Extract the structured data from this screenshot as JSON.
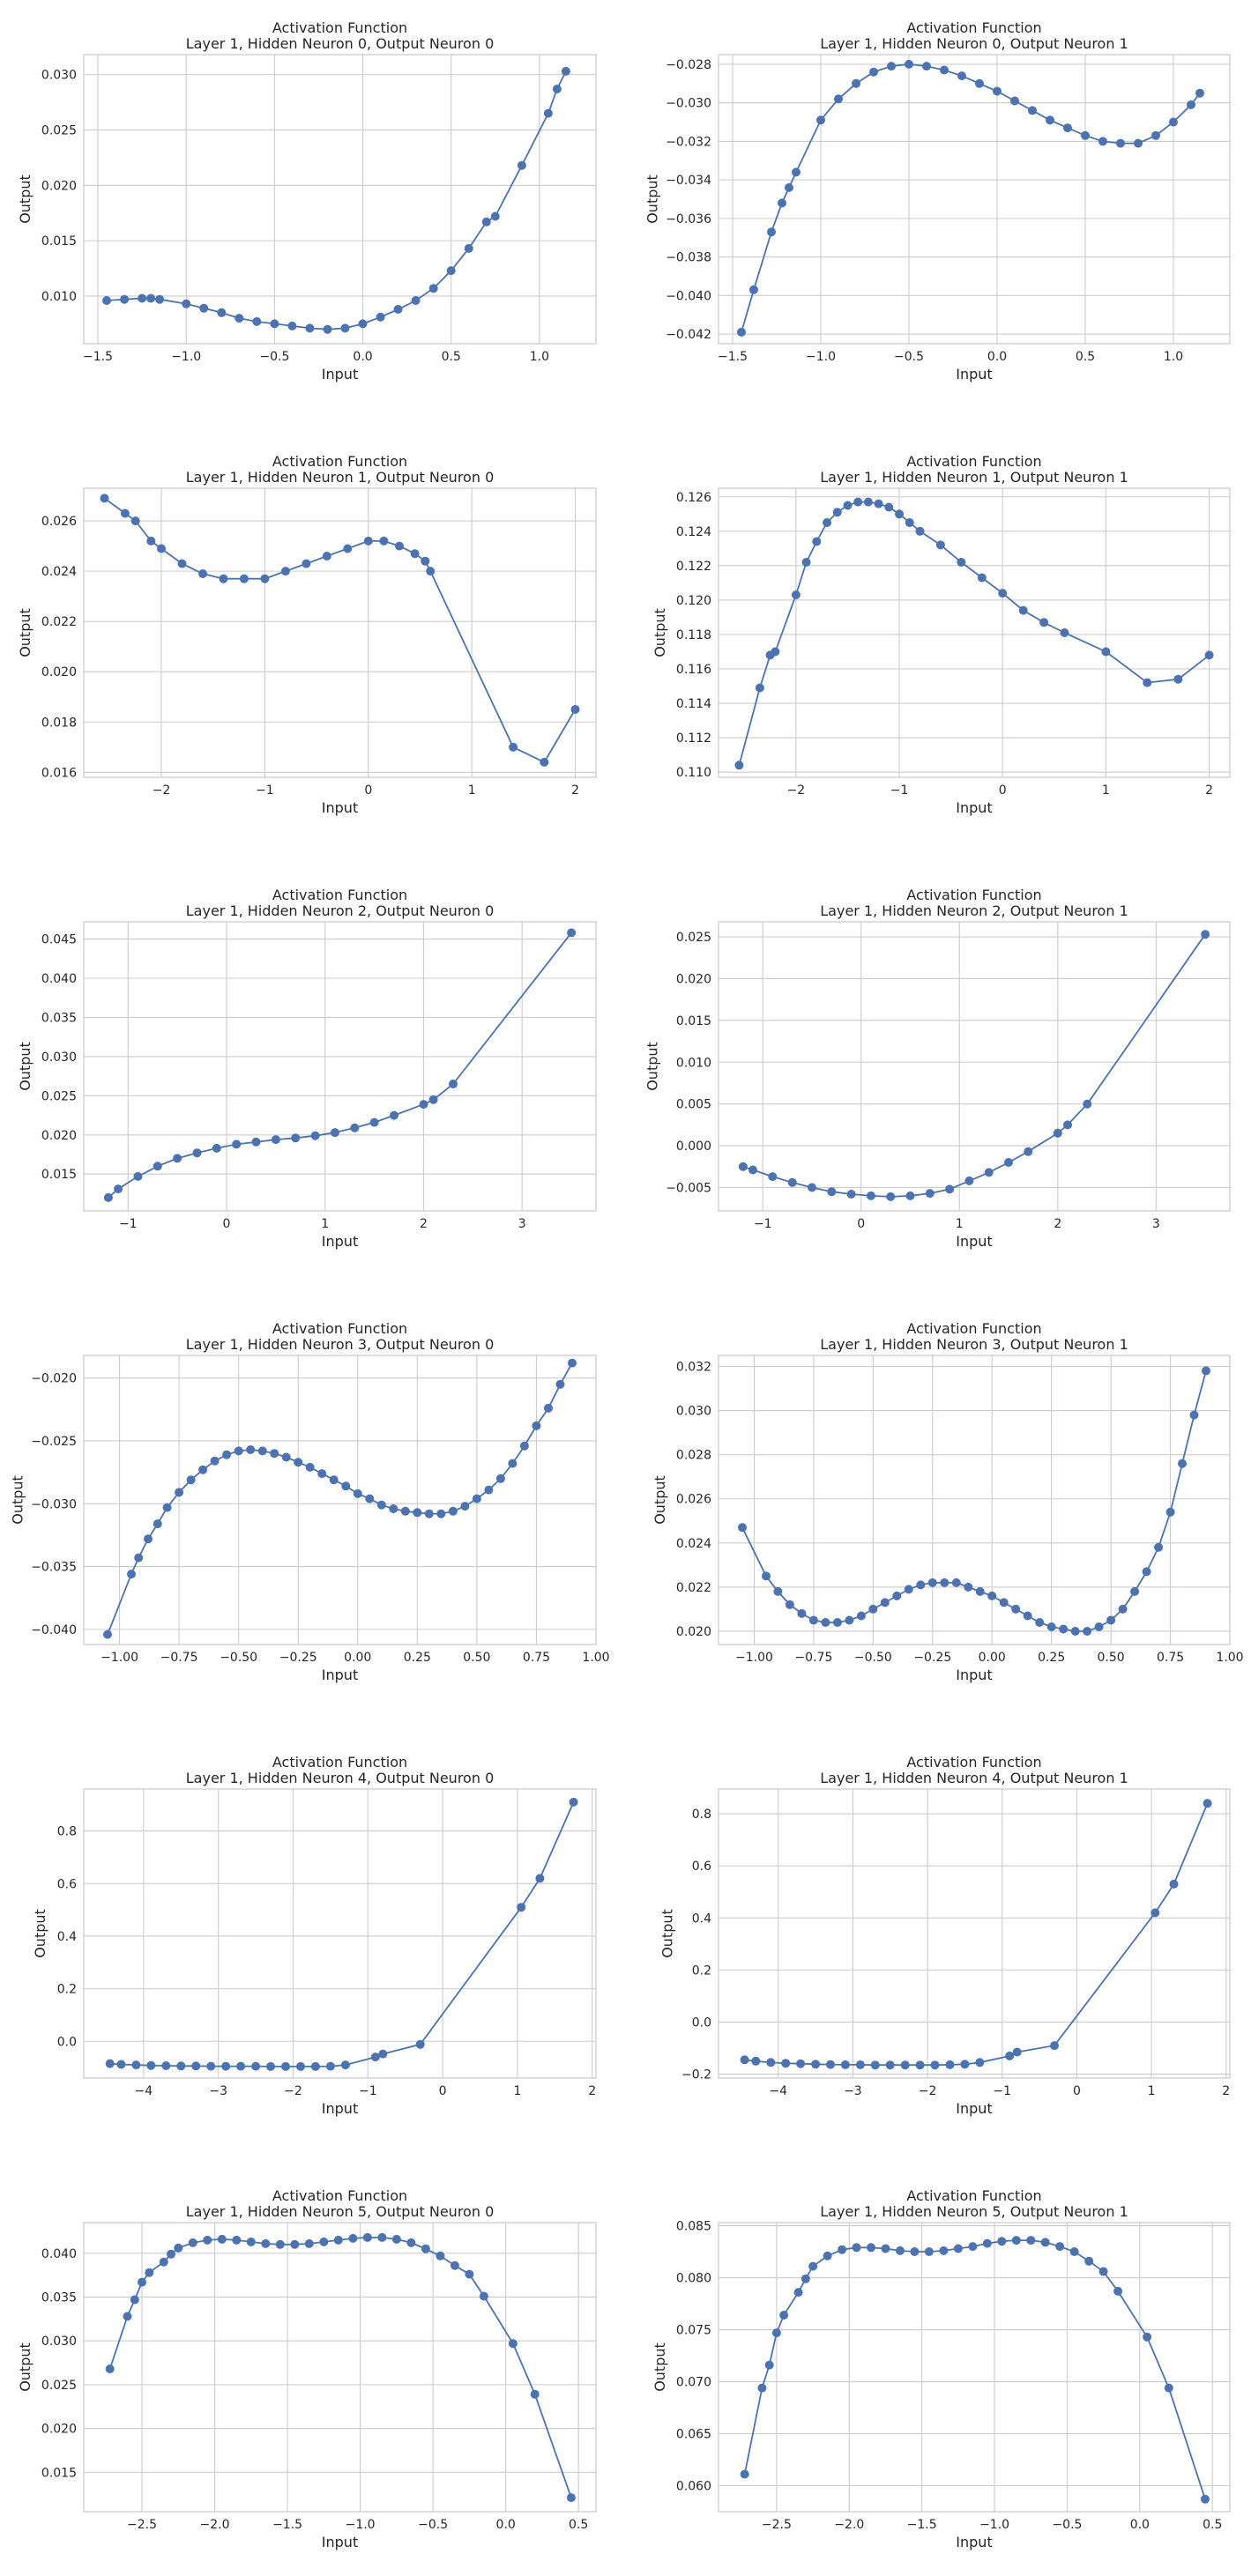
{
  "chart_data": [
    {
      "type": "line",
      "title": [
        "Activation Function",
        "Layer 1, Hidden Neuron 0, Output Neuron 0"
      ],
      "xlabel": "Input",
      "ylabel": "Output",
      "xlim": [
        -1.58,
        1.32
      ],
      "ylim": [
        0.0057,
        0.0318
      ],
      "xticks": [
        "-1.5",
        "-1.0",
        "-0.5",
        "0.0",
        "0.5",
        "1.0"
      ],
      "yticks": [
        "0.010",
        "0.015",
        "0.020",
        "0.025",
        "0.030"
      ],
      "grid": true,
      "x": [
        -1.45,
        -1.35,
        -1.25,
        -1.2,
        -1.15,
        -1.0,
        -0.9,
        -0.8,
        -0.7,
        -0.6,
        -0.5,
        -0.4,
        -0.3,
        -0.2,
        -0.1,
        0.0,
        0.1,
        0.2,
        0.3,
        0.4,
        0.5,
        0.6,
        0.7,
        0.75,
        0.9,
        1.05,
        1.1,
        1.15
      ],
      "y": [
        0.0096,
        0.0097,
        0.0098,
        0.0098,
        0.0097,
        0.0093,
        0.0089,
        0.0085,
        0.008,
        0.0077,
        0.0075,
        0.0073,
        0.0071,
        0.007,
        0.0071,
        0.0075,
        0.0081,
        0.0088,
        0.0096,
        0.0107,
        0.0123,
        0.0143,
        0.0167,
        0.0172,
        0.0218,
        0.0265,
        0.0287,
        0.0303
      ]
    },
    {
      "type": "line",
      "title": [
        "Activation Function",
        "Layer 1, Hidden Neuron 0, Output Neuron 1"
      ],
      "xlabel": "Input",
      "ylabel": "Output",
      "xlim": [
        -1.58,
        1.32
      ],
      "ylim": [
        -0.0425,
        -0.0275
      ],
      "xticks": [
        "-1.5",
        "-1.0",
        "-0.5",
        "0.0",
        "0.5",
        "1.0"
      ],
      "yticks": [
        "-0.042",
        "-0.040",
        "-0.038",
        "-0.036",
        "-0.034",
        "-0.032",
        "-0.030",
        "-0.028"
      ],
      "grid": true,
      "x": [
        -1.45,
        -1.38,
        -1.28,
        -1.22,
        -1.18,
        -1.14,
        -1.0,
        -0.9,
        -0.8,
        -0.7,
        -0.6,
        -0.5,
        -0.4,
        -0.3,
        -0.2,
        -0.1,
        0.0,
        0.1,
        0.2,
        0.3,
        0.4,
        0.5,
        0.6,
        0.7,
        0.8,
        0.9,
        1.0,
        1.1,
        1.15
      ],
      "y": [
        -0.0419,
        -0.0397,
        -0.0367,
        -0.0352,
        -0.0344,
        -0.0336,
        -0.0309,
        -0.0298,
        -0.029,
        -0.0284,
        -0.0281,
        -0.028,
        -0.0281,
        -0.0283,
        -0.0286,
        -0.029,
        -0.0294,
        -0.0299,
        -0.0304,
        -0.0309,
        -0.0313,
        -0.0317,
        -0.032,
        -0.0321,
        -0.0321,
        -0.0317,
        -0.031,
        -0.0301,
        -0.0295
      ]
    },
    {
      "type": "line",
      "title": [
        "Activation Function",
        "Layer 1, Hidden Neuron 1, Output Neuron 0"
      ],
      "xlabel": "Input",
      "ylabel": "Output",
      "xlim": [
        -2.75,
        2.2
      ],
      "ylim": [
        0.0158,
        0.0273
      ],
      "xticks": [
        "-2",
        "-1",
        "0",
        "1",
        "2"
      ],
      "yticks": [
        "0.016",
        "0.018",
        "0.020",
        "0.022",
        "0.024",
        "0.026"
      ],
      "grid": true,
      "x": [
        -2.55,
        -2.35,
        -2.25,
        -2.1,
        -2.0,
        -1.8,
        -1.6,
        -1.4,
        -1.2,
        -1.0,
        -0.8,
        -0.6,
        -0.4,
        -0.2,
        0.0,
        0.15,
        0.3,
        0.45,
        0.55,
        0.6,
        1.4,
        1.7,
        2.0
      ],
      "y": [
        0.0269,
        0.0263,
        0.026,
        0.0252,
        0.0249,
        0.0243,
        0.0239,
        0.0237,
        0.0237,
        0.0237,
        0.024,
        0.0243,
        0.0246,
        0.0249,
        0.0252,
        0.0252,
        0.025,
        0.0247,
        0.0244,
        0.024,
        0.017,
        0.0164,
        0.0185
      ]
    },
    {
      "type": "line",
      "title": [
        "Activation Function",
        "Layer 1, Hidden Neuron 1, Output Neuron 1"
      ],
      "xlabel": "Input",
      "ylabel": "Output",
      "xlim": [
        -2.75,
        2.2
      ],
      "ylim": [
        0.1097,
        0.1265
      ],
      "xticks": [
        "-2",
        "-1",
        "0",
        "1",
        "2"
      ],
      "yticks": [
        "0.110",
        "0.112",
        "0.114",
        "0.116",
        "0.118",
        "0.120",
        "0.122",
        "0.124",
        "0.126"
      ],
      "grid": true,
      "x": [
        -2.55,
        -2.35,
        -2.25,
        -2.2,
        -2.0,
        -1.9,
        -1.8,
        -1.7,
        -1.6,
        -1.5,
        -1.4,
        -1.3,
        -1.2,
        -1.1,
        -1.0,
        -0.9,
        -0.8,
        -0.6,
        -0.4,
        -0.2,
        0.0,
        0.2,
        0.4,
        0.6,
        1.0,
        1.4,
        1.7,
        2.0
      ],
      "y": [
        0.1104,
        0.1149,
        0.1168,
        0.117,
        0.1203,
        0.1222,
        0.1234,
        0.1245,
        0.1251,
        0.1255,
        0.1257,
        0.1257,
        0.1256,
        0.1254,
        0.125,
        0.1245,
        0.124,
        0.1232,
        0.1222,
        0.1213,
        0.1204,
        0.1194,
        0.1187,
        0.1181,
        0.117,
        0.1152,
        0.1154,
        0.1168
      ]
    },
    {
      "type": "line",
      "title": [
        "Activation Function",
        "Layer 1, Hidden Neuron 2, Output Neuron 0"
      ],
      "xlabel": "Input",
      "ylabel": "Output",
      "xlim": [
        -1.45,
        3.75
      ],
      "ylim": [
        0.0103,
        0.0472
      ],
      "xticks": [
        "-1",
        "0",
        "1",
        "2",
        "3"
      ],
      "yticks": [
        "0.015",
        "0.020",
        "0.025",
        "0.030",
        "0.035",
        "0.040",
        "0.045"
      ],
      "grid": true,
      "x": [
        -1.2,
        -1.1,
        -0.9,
        -0.7,
        -0.5,
        -0.3,
        -0.1,
        0.1,
        0.3,
        0.5,
        0.7,
        0.9,
        1.1,
        1.3,
        1.5,
        1.7,
        2.0,
        2.1,
        2.3,
        3.5
      ],
      "y": [
        0.012,
        0.0131,
        0.0147,
        0.016,
        0.017,
        0.0177,
        0.0183,
        0.0188,
        0.0191,
        0.0194,
        0.0196,
        0.0199,
        0.0203,
        0.0209,
        0.0216,
        0.0225,
        0.0239,
        0.0245,
        0.0265,
        0.0458
      ]
    },
    {
      "type": "line",
      "title": [
        "Activation Function",
        "Layer 1, Hidden Neuron 2, Output Neuron 1"
      ],
      "xlabel": "Input",
      "ylabel": "Output",
      "xlim": [
        -1.45,
        3.75
      ],
      "ylim": [
        -0.0078,
        0.0268
      ],
      "xticks": [
        "-1",
        "0",
        "1",
        "2",
        "3"
      ],
      "yticks": [
        "-0.005",
        "0.000",
        "0.005",
        "0.010",
        "0.015",
        "0.020",
        "0.025"
      ],
      "grid": true,
      "x": [
        -1.2,
        -1.1,
        -0.9,
        -0.7,
        -0.5,
        -0.3,
        -0.1,
        0.1,
        0.3,
        0.5,
        0.7,
        0.9,
        1.1,
        1.3,
        1.5,
        1.7,
        2.0,
        2.1,
        2.3,
        3.5
      ],
      "y": [
        -0.0025,
        -0.0029,
        -0.0037,
        -0.0044,
        -0.005,
        -0.0055,
        -0.0058,
        -0.006,
        -0.0061,
        -0.006,
        -0.0057,
        -0.0052,
        -0.0042,
        -0.0032,
        -0.002,
        -0.0007,
        0.0015,
        0.0025,
        0.005,
        0.0253
      ]
    },
    {
      "type": "line",
      "title": [
        "Activation Function",
        "Layer 1, Hidden Neuron 3, Output Neuron 0"
      ],
      "xlabel": "Input",
      "ylabel": "Output",
      "xlim": [
        -1.15,
        1.0
      ],
      "ylim": [
        -0.0412,
        -0.0182
      ],
      "xticks": [
        "-1.00",
        "-0.75",
        "-0.50",
        "-0.25",
        "0.00",
        "0.25",
        "0.50",
        "0.75",
        "1.00"
      ],
      "yticks": [
        "-0.040",
        "-0.035",
        "-0.030",
        "-0.025",
        "-0.020"
      ],
      "grid": true,
      "x": [
        -1.05,
        -0.95,
        -0.92,
        -0.88,
        -0.84,
        -0.8,
        -0.75,
        -0.7,
        -0.65,
        -0.6,
        -0.55,
        -0.5,
        -0.45,
        -0.4,
        -0.35,
        -0.3,
        -0.25,
        -0.2,
        -0.15,
        -0.1,
        -0.05,
        0.0,
        0.05,
        0.1,
        0.15,
        0.2,
        0.25,
        0.3,
        0.35,
        0.4,
        0.45,
        0.5,
        0.55,
        0.6,
        0.65,
        0.7,
        0.75,
        0.8,
        0.85,
        0.9
      ],
      "y": [
        -0.0404,
        -0.0356,
        -0.0343,
        -0.0328,
        -0.0316,
        -0.0303,
        -0.0291,
        -0.0281,
        -0.0273,
        -0.0266,
        -0.0261,
        -0.0258,
        -0.0257,
        -0.0258,
        -0.026,
        -0.0263,
        -0.0267,
        -0.0271,
        -0.0276,
        -0.0281,
        -0.0286,
        -0.0292,
        -0.0296,
        -0.0301,
        -0.0304,
        -0.0306,
        -0.0307,
        -0.0308,
        -0.0308,
        -0.0306,
        -0.0302,
        -0.0296,
        -0.0289,
        -0.028,
        -0.0268,
        -0.0254,
        -0.0238,
        -0.0224,
        -0.0205,
        -0.0188
      ]
    },
    {
      "type": "line",
      "title": [
        "Activation Function",
        "Layer 1, Hidden Neuron 3, Output Neuron 1"
      ],
      "xlabel": "Input",
      "ylabel": "Output",
      "xlim": [
        -1.15,
        1.0
      ],
      "ylim": [
        0.0194,
        0.0325
      ],
      "xticks": [
        "-1.00",
        "-0.75",
        "-0.50",
        "-0.25",
        "0.00",
        "0.25",
        "0.50",
        "0.75",
        "1.00"
      ],
      "yticks": [
        "0.020",
        "0.022",
        "0.024",
        "0.026",
        "0.028",
        "0.030",
        "0.032"
      ],
      "grid": true,
      "x": [
        -1.05,
        -0.95,
        -0.9,
        -0.85,
        -0.8,
        -0.75,
        -0.7,
        -0.65,
        -0.6,
        -0.55,
        -0.5,
        -0.45,
        -0.4,
        -0.35,
        -0.3,
        -0.25,
        -0.2,
        -0.15,
        -0.1,
        -0.05,
        0.0,
        0.05,
        0.1,
        0.15,
        0.2,
        0.25,
        0.3,
        0.35,
        0.4,
        0.45,
        0.5,
        0.55,
        0.6,
        0.65,
        0.7,
        0.75,
        0.8,
        0.85,
        0.9
      ],
      "y": [
        0.0247,
        0.0225,
        0.0218,
        0.0212,
        0.0208,
        0.0205,
        0.0204,
        0.0204,
        0.0205,
        0.0207,
        0.021,
        0.0213,
        0.0216,
        0.0219,
        0.0221,
        0.0222,
        0.0222,
        0.0222,
        0.022,
        0.0218,
        0.0216,
        0.0213,
        0.021,
        0.0207,
        0.0204,
        0.0202,
        0.0201,
        0.02,
        0.02,
        0.0202,
        0.0205,
        0.021,
        0.0218,
        0.0227,
        0.0238,
        0.0254,
        0.0276,
        0.0298,
        0.0318
      ]
    },
    {
      "type": "line",
      "title": [
        "Activation Function",
        "Layer 1, Hidden Neuron 4, Output Neuron 0"
      ],
      "xlabel": "Input",
      "ylabel": "Output",
      "xlim": [
        -4.8,
        2.05
      ],
      "ylim": [
        -0.14,
        0.96
      ],
      "xticks": [
        "-4",
        "-3",
        "-2",
        "-1",
        "0",
        "1",
        "2"
      ],
      "yticks": [
        "0.0",
        "0.2",
        "0.4",
        "0.6",
        "0.8"
      ],
      "grid": true,
      "x": [
        -4.45,
        -4.3,
        -4.1,
        -3.9,
        -3.7,
        -3.5,
        -3.3,
        -3.1,
        -2.9,
        -2.7,
        -2.5,
        -2.3,
        -2.1,
        -1.9,
        -1.7,
        -1.5,
        -1.3,
        -0.9,
        -0.8,
        -0.3,
        1.05,
        1.3,
        1.75
      ],
      "y": [
        -0.085,
        -0.088,
        -0.09,
        -0.092,
        -0.093,
        -0.094,
        -0.094,
        -0.095,
        -0.095,
        -0.095,
        -0.095,
        -0.096,
        -0.096,
        -0.096,
        -0.096,
        -0.095,
        -0.09,
        -0.06,
        -0.048,
        -0.012,
        0.51,
        0.62,
        0.91
      ]
    },
    {
      "type": "line",
      "title": [
        "Activation Function",
        "Layer 1, Hidden Neuron 4, Output Neuron 1"
      ],
      "xlabel": "Input",
      "ylabel": "Output",
      "xlim": [
        -4.8,
        2.05
      ],
      "ylim": [
        -0.215,
        0.895
      ],
      "xticks": [
        "-4",
        "-3",
        "-2",
        "-1",
        "0",
        "1",
        "2"
      ],
      "yticks": [
        "-0.2",
        "0.0",
        "0.2",
        "0.4",
        "0.6",
        "0.8"
      ],
      "grid": true,
      "x": [
        -4.45,
        -4.3,
        -4.1,
        -3.9,
        -3.7,
        -3.5,
        -3.3,
        -3.1,
        -2.9,
        -2.7,
        -2.5,
        -2.3,
        -2.1,
        -1.9,
        -1.7,
        -1.5,
        -1.3,
        -0.9,
        -0.8,
        -0.3,
        1.05,
        1.3,
        1.75
      ],
      "y": [
        -0.145,
        -0.15,
        -0.155,
        -0.158,
        -0.16,
        -0.162,
        -0.163,
        -0.164,
        -0.164,
        -0.165,
        -0.165,
        -0.165,
        -0.165,
        -0.165,
        -0.164,
        -0.162,
        -0.155,
        -0.13,
        -0.115,
        -0.09,
        0.42,
        0.53,
        0.84
      ]
    },
    {
      "type": "line",
      "title": [
        "Activation Function",
        "Layer 1, Hidden Neuron 5, Output Neuron 0"
      ],
      "xlabel": "Input",
      "ylabel": "Output",
      "xlim": [
        -2.9,
        0.62
      ],
      "ylim": [
        0.0105,
        0.0435
      ],
      "xticks": [
        "-2.5",
        "-2.0",
        "-1.5",
        "-1.0",
        "-0.5",
        "0.0",
        "0.5"
      ],
      "yticks": [
        "0.015",
        "0.020",
        "0.025",
        "0.030",
        "0.035",
        "0.040"
      ],
      "grid": true,
      "x": [
        -2.72,
        -2.6,
        -2.55,
        -2.5,
        -2.45,
        -2.35,
        -2.3,
        -2.25,
        -2.15,
        -2.05,
        -1.95,
        -1.85,
        -1.75,
        -1.65,
        -1.55,
        -1.45,
        -1.35,
        -1.25,
        -1.15,
        -1.05,
        -0.95,
        -0.85,
        -0.75,
        -0.65,
        -0.55,
        -0.45,
        -0.35,
        -0.25,
        -0.15,
        0.05,
        0.2,
        0.45
      ],
      "y": [
        0.0268,
        0.0328,
        0.0347,
        0.0367,
        0.0378,
        0.039,
        0.0399,
        0.0406,
        0.0412,
        0.0415,
        0.0416,
        0.0415,
        0.0413,
        0.0411,
        0.041,
        0.041,
        0.0411,
        0.0413,
        0.0415,
        0.0417,
        0.0418,
        0.0418,
        0.0416,
        0.0412,
        0.0405,
        0.0397,
        0.0386,
        0.0376,
        0.0351,
        0.0297,
        0.0239,
        0.0121
      ]
    },
    {
      "type": "line",
      "title": [
        "Activation Function",
        "Layer 1, Hidden Neuron 5, Output Neuron 1"
      ],
      "xlabel": "Input",
      "ylabel": "Output",
      "xlim": [
        -2.9,
        0.62
      ],
      "ylim": [
        0.0575,
        0.0853
      ],
      "xticks": [
        "-2.5",
        "-2.0",
        "-1.5",
        "-1.0",
        "-0.5",
        "0.0",
        "0.5"
      ],
      "yticks": [
        "0.060",
        "0.065",
        "0.070",
        "0.075",
        "0.080",
        "0.085"
      ],
      "grid": true,
      "x": [
        -2.72,
        -2.6,
        -2.55,
        -2.5,
        -2.45,
        -2.35,
        -2.3,
        -2.25,
        -2.15,
        -2.05,
        -1.95,
        -1.85,
        -1.75,
        -1.65,
        -1.55,
        -1.45,
        -1.35,
        -1.25,
        -1.15,
        -1.05,
        -0.95,
        -0.85,
        -0.75,
        -0.65,
        -0.55,
        -0.45,
        -0.35,
        -0.25,
        -0.15,
        0.05,
        0.2,
        0.45
      ],
      "y": [
        0.0611,
        0.0694,
        0.0716,
        0.0747,
        0.0764,
        0.0786,
        0.0799,
        0.0811,
        0.0821,
        0.0827,
        0.0829,
        0.0829,
        0.0828,
        0.0826,
        0.0825,
        0.0825,
        0.0826,
        0.0828,
        0.083,
        0.0833,
        0.0835,
        0.0836,
        0.0836,
        0.0834,
        0.083,
        0.0825,
        0.0816,
        0.0806,
        0.0787,
        0.0743,
        0.0694,
        0.0587
      ]
    }
  ]
}
